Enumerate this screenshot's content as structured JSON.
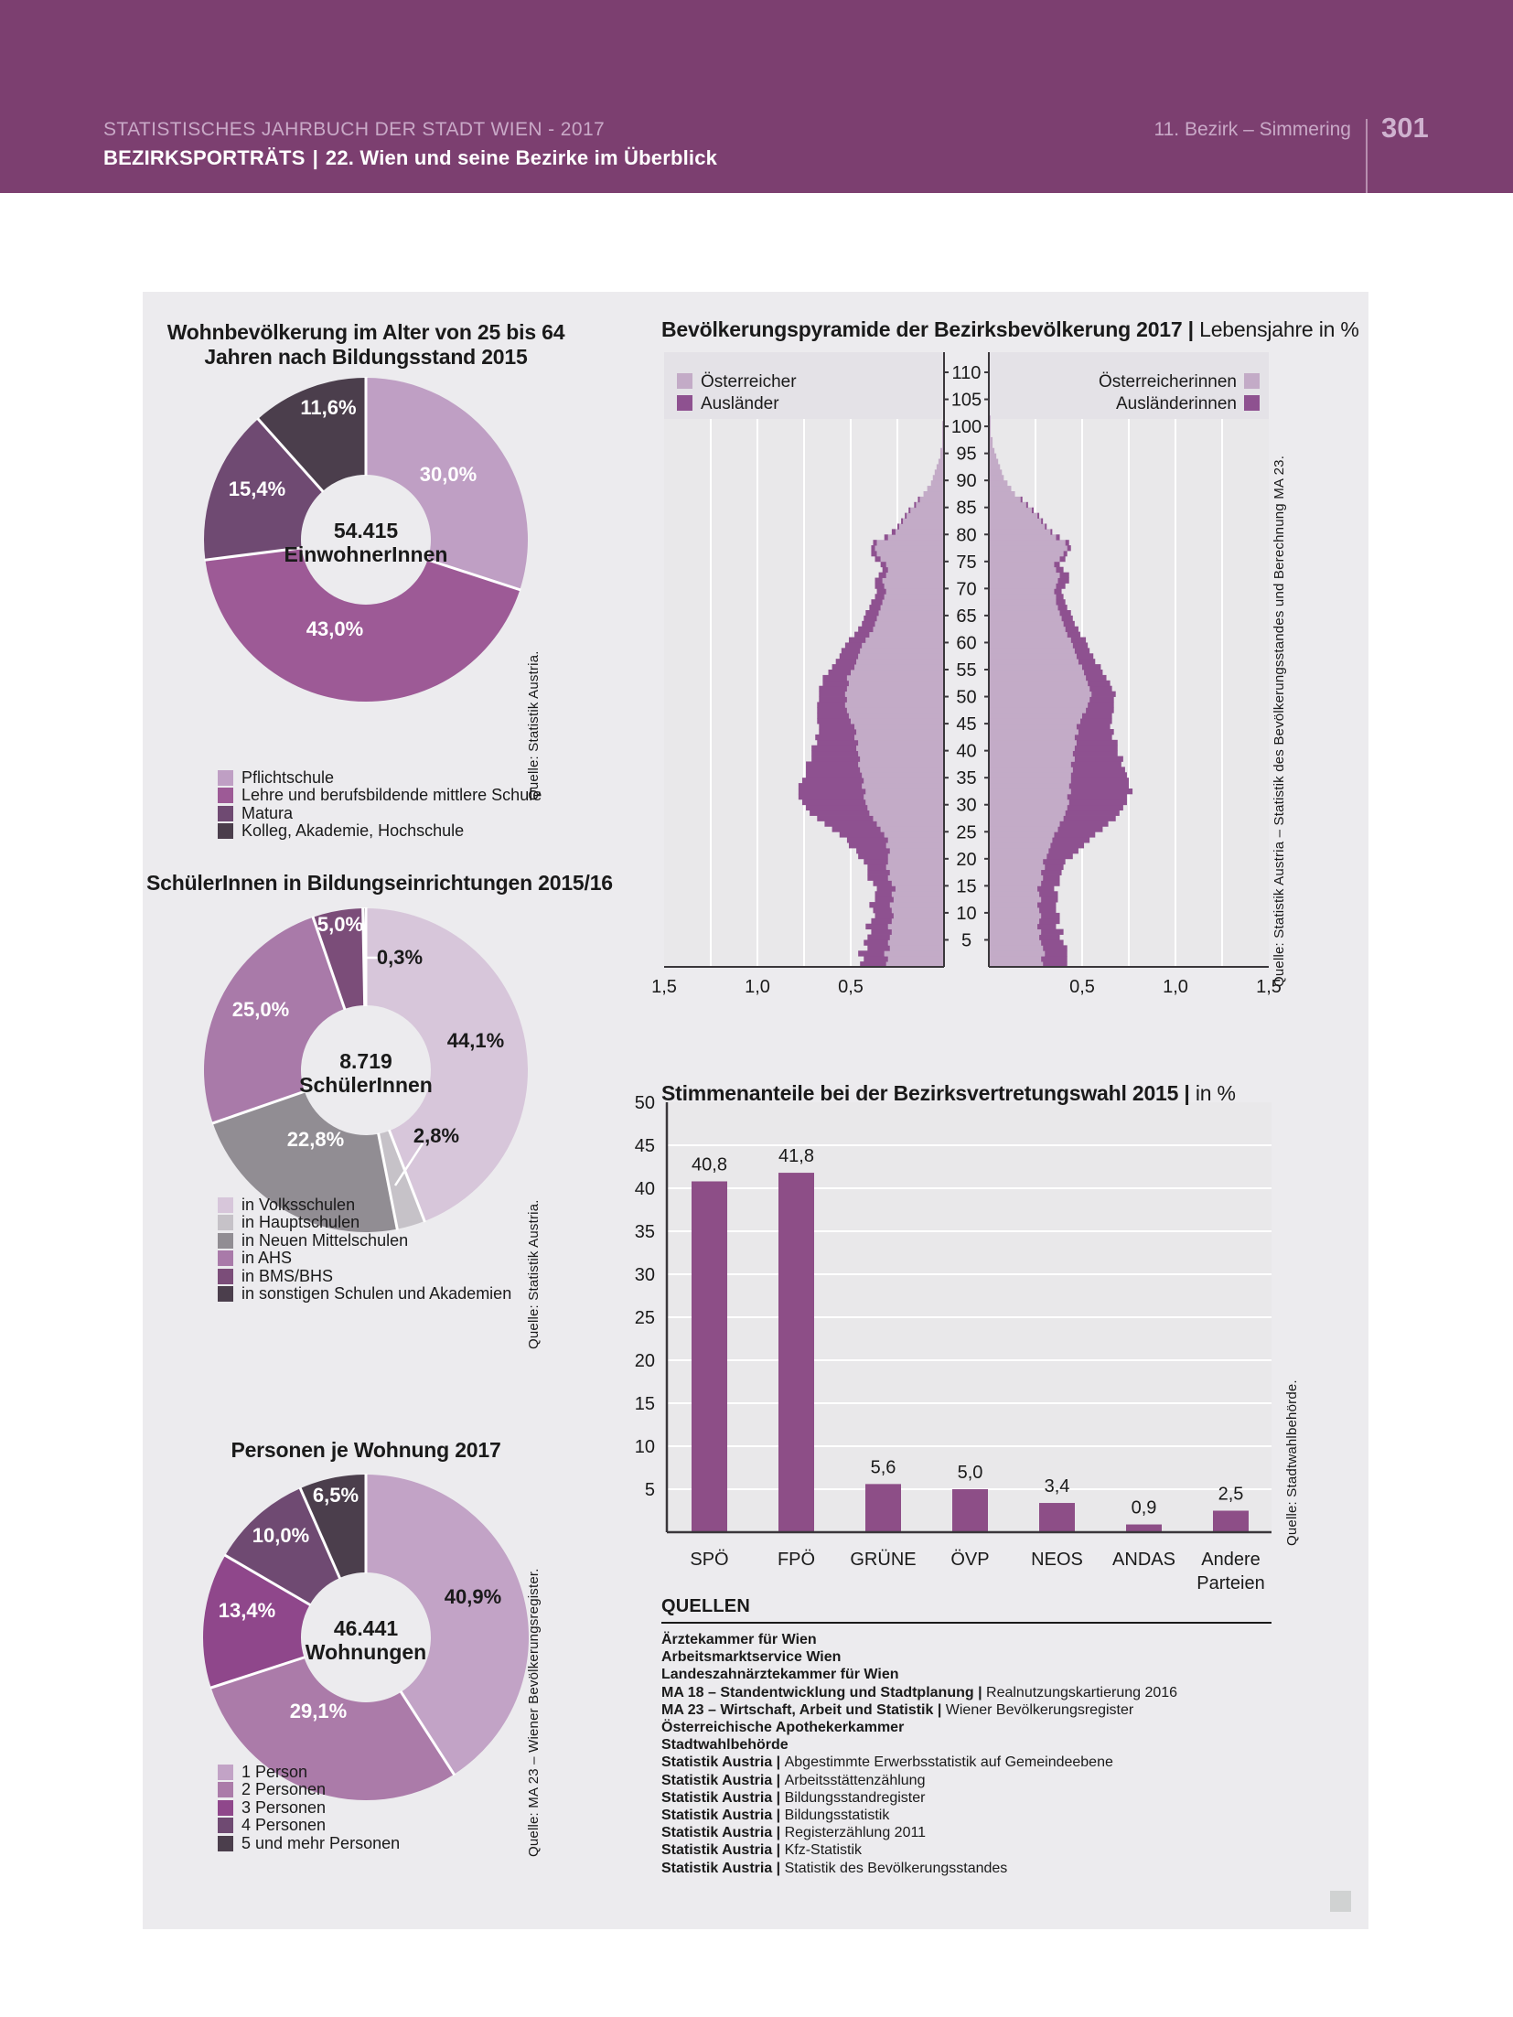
{
  "header": {
    "series_title": "STATISTISCHES JAHRBUCH DER STADT WIEN - 2017",
    "section": "BEZIRKSPORTRÄTS",
    "chapter": "22. Wien und seine Bezirke im Überblick",
    "district": "11. Bezirk – Simmering",
    "page_number": "301",
    "band_color": "#7c3f70"
  },
  "chart_data": [
    {
      "id": "education",
      "type": "pie",
      "title": "Wohnbevölkerung im Alter von 25 bis 64",
      "title2": "Jahren nach Bildungsstand 2015",
      "center_value": "54.415",
      "center_label": "EinwohnerInnen",
      "source": "Quelle: Statistik Austria.",
      "segments": [
        {
          "label": "Pflichtschule",
          "value": 30.0,
          "value_label": "30,0%",
          "color": "#bf9fc4",
          "text_color": "#ffffff"
        },
        {
          "label": "Lehre und berufsbildende mittlere Schule",
          "value": 43.0,
          "value_label": "43,0%",
          "color": "#9d5a96",
          "text_color": "#ffffff"
        },
        {
          "label": "Matura",
          "value": 15.4,
          "value_label": "15,4%",
          "color": "#6f4a72",
          "text_color": "#ffffff"
        },
        {
          "label": "Kolleg, Akademie, Hochschule",
          "value": 11.6,
          "value_label": "11,6%",
          "color": "#4b3e4c",
          "text_color": "#ffffff"
        }
      ]
    },
    {
      "id": "pyramid",
      "type": "pyramid",
      "title": "Bevölkerungspyramide der Bezirksbevölkerung 2017 |",
      "subtitle": "Lebensjahre in %",
      "source": "Quelle: Statistik Austria – Statistik des Bevölkerungsstandes und Berechnung MA 23.",
      "legend_left": [
        "Österreicher",
        "Ausländer"
      ],
      "legend_right": [
        "Österreicherinnen",
        "Ausländerinnen"
      ],
      "colors": {
        "national": "#c3abc7",
        "foreign": "#8e5190"
      },
      "age_axis": {
        "min": 5,
        "max": 110,
        "step": 5
      },
      "x_axis": {
        "max": 1.5,
        "tick_step": 0.5,
        "ticks_left": [
          "1,5",
          "1,0",
          "0,5"
        ],
        "ticks_right": [
          "0,5",
          "1,0",
          "1,5"
        ]
      },
      "male": {
        "austrians": [
          0.31,
          0.3,
          0.32,
          0.29,
          0.3,
          0.29,
          0.28,
          0.3,
          0.28,
          0.27,
          0.28,
          0.29,
          0.27,
          0.28,
          0.26,
          0.28,
          0.3,
          0.29,
          0.31,
          0.3,
          0.3,
          0.29,
          0.31,
          0.3,
          0.32,
          0.34,
          0.36,
          0.38,
          0.4,
          0.41,
          0.42,
          0.43,
          0.42,
          0.44,
          0.43,
          0.44,
          0.45,
          0.46,
          0.45,
          0.46,
          0.47,
          0.46,
          0.48,
          0.47,
          0.48,
          0.5,
          0.51,
          0.52,
          0.53,
          0.52,
          0.53,
          0.52,
          0.51,
          0.52,
          0.5,
          0.48,
          0.47,
          0.46,
          0.45,
          0.44,
          0.42,
          0.4,
          0.38,
          0.37,
          0.36,
          0.35,
          0.34,
          0.33,
          0.32,
          0.31,
          0.32,
          0.33,
          0.31,
          0.3,
          0.31,
          0.34,
          0.36,
          0.37,
          0.36,
          0.3,
          0.26,
          0.24,
          0.22,
          0.2,
          0.18,
          0.15,
          0.13,
          0.11,
          0.09,
          0.07,
          0.06,
          0.05,
          0.04,
          0.03,
          0.02,
          0.02,
          0.01,
          0.01,
          0.01,
          0.01,
          0.01,
          0,
          0,
          0,
          0,
          0
        ],
        "foreigners": [
          0.14,
          0.13,
          0.14,
          0.12,
          0.13,
          0.12,
          0.11,
          0.12,
          0.11,
          0.1,
          0.1,
          0.11,
          0.1,
          0.09,
          0.1,
          0.1,
          0.11,
          0.12,
          0.1,
          0.13,
          0.16,
          0.18,
          0.2,
          0.22,
          0.24,
          0.26,
          0.28,
          0.3,
          0.32,
          0.33,
          0.34,
          0.35,
          0.36,
          0.34,
          0.33,
          0.3,
          0.29,
          0.28,
          0.26,
          0.25,
          0.24,
          0.22,
          0.21,
          0.2,
          0.19,
          0.18,
          0.17,
          0.16,
          0.15,
          0.15,
          0.14,
          0.15,
          0.14,
          0.13,
          0.12,
          0.12,
          0.11,
          0.1,
          0.1,
          0.09,
          0.09,
          0.08,
          0.08,
          0.07,
          0.07,
          0.07,
          0.06,
          0.06,
          0.05,
          0.05,
          0.05,
          0.04,
          0.04,
          0.03,
          0.03,
          0.03,
          0.03,
          0.02,
          0.02,
          0.02,
          0.02,
          0.01,
          0.01,
          0.01,
          0.01,
          0.01,
          0.01,
          0,
          0,
          0,
          0,
          0,
          0,
          0,
          0,
          0,
          0,
          0,
          0,
          0,
          0,
          0,
          0,
          0,
          0,
          0
        ]
      },
      "female": {
        "austrians": [
          0.29,
          0.28,
          0.3,
          0.29,
          0.28,
          0.27,
          0.28,
          0.26,
          0.27,
          0.28,
          0.27,
          0.26,
          0.28,
          0.27,
          0.26,
          0.28,
          0.29,
          0.28,
          0.3,
          0.29,
          0.31,
          0.32,
          0.33,
          0.34,
          0.35,
          0.37,
          0.38,
          0.4,
          0.41,
          0.42,
          0.43,
          0.42,
          0.44,
          0.43,
          0.44,
          0.44,
          0.45,
          0.44,
          0.46,
          0.45,
          0.46,
          0.47,
          0.46,
          0.48,
          0.47,
          0.49,
          0.5,
          0.52,
          0.53,
          0.54,
          0.55,
          0.54,
          0.53,
          0.52,
          0.51,
          0.5,
          0.48,
          0.47,
          0.46,
          0.45,
          0.44,
          0.42,
          0.41,
          0.4,
          0.39,
          0.38,
          0.37,
          0.36,
          0.36,
          0.35,
          0.36,
          0.37,
          0.38,
          0.36,
          0.35,
          0.38,
          0.4,
          0.42,
          0.41,
          0.36,
          0.33,
          0.3,
          0.28,
          0.26,
          0.23,
          0.2,
          0.17,
          0.14,
          0.12,
          0.1,
          0.08,
          0.07,
          0.06,
          0.05,
          0.04,
          0.03,
          0.02,
          0.02,
          0.01,
          0.01,
          0.01,
          0.01,
          0,
          0,
          0,
          0
        ],
        "foreigners": [
          0.13,
          0.14,
          0.12,
          0.13,
          0.12,
          0.11,
          0.12,
          0.1,
          0.11,
          0.1,
          0.09,
          0.1,
          0.09,
          0.1,
          0.09,
          0.1,
          0.09,
          0.11,
          0.1,
          0.12,
          0.14,
          0.16,
          0.18,
          0.2,
          0.22,
          0.24,
          0.26,
          0.28,
          0.29,
          0.3,
          0.31,
          0.32,
          0.33,
          0.32,
          0.31,
          0.3,
          0.28,
          0.27,
          0.26,
          0.24,
          0.23,
          0.22,
          0.2,
          0.19,
          0.18,
          0.17,
          0.16,
          0.15,
          0.14,
          0.13,
          0.13,
          0.12,
          0.12,
          0.11,
          0.1,
          0.1,
          0.09,
          0.09,
          0.08,
          0.08,
          0.08,
          0.07,
          0.07,
          0.06,
          0.06,
          0.06,
          0.05,
          0.05,
          0.04,
          0.04,
          0.05,
          0.06,
          0.05,
          0.04,
          0.03,
          0.03,
          0.02,
          0.02,
          0.02,
          0.02,
          0.01,
          0.01,
          0.01,
          0.01,
          0.01,
          0.01,
          0.01,
          0,
          0,
          0,
          0,
          0,
          0,
          0,
          0,
          0,
          0,
          0,
          0,
          0,
          0,
          0,
          0,
          0,
          0,
          0
        ]
      }
    },
    {
      "id": "schools",
      "type": "pie",
      "title": "SchülerInnen in Bildungseinrichtungen 2015/16",
      "center_value": "8.719",
      "center_label": "SchülerInnen",
      "source": "Quelle: Statistik Austria.",
      "segments": [
        {
          "label": "in Volksschulen",
          "value": 44.1,
          "value_label": "44,1%",
          "color": "#d7c6da",
          "text_color": "#1a1a1a"
        },
        {
          "label": "in Hauptschulen",
          "value": 2.8,
          "value_label": "2,8%",
          "color": "#c6c2c8",
          "text_color": "#1a1a1a"
        },
        {
          "label": "in Neuen Mittelschulen",
          "value": 22.8,
          "value_label": "22,8%",
          "color": "#918d93",
          "text_color": "#ffffff"
        },
        {
          "label": "in AHS",
          "value": 25.0,
          "value_label": "25,0%",
          "color": "#a97aa9",
          "text_color": "#ffffff"
        },
        {
          "label": "in BMS/BHS",
          "value": 5.0,
          "value_label": "5,0%",
          "color": "#7b4d79",
          "text_color": "#ffffff"
        },
        {
          "label": "in sonstigen Schulen und Akademien",
          "value": 0.3,
          "value_label": "0,3%",
          "color": "#4b3e4c",
          "text_color": "#1a1a1a"
        }
      ]
    },
    {
      "id": "election",
      "type": "bar",
      "title": "Stimmenanteile bei der Bezirksvertretungswahl 2015 |",
      "subtitle": "in %",
      "source": "Quelle: Stadtwahlbehörde.",
      "categories": [
        "SPÖ",
        "FPÖ",
        "GRÜNE",
        "ÖVP",
        "NEOS",
        "ANDAS",
        "Andere Parteien"
      ],
      "category_lines": [
        [
          "SPÖ"
        ],
        [
          "FPÖ"
        ],
        [
          "GRÜNE"
        ],
        [
          "ÖVP"
        ],
        [
          "NEOS"
        ],
        [
          "ANDAS"
        ],
        [
          "Andere",
          "Parteien"
        ]
      ],
      "values": [
        40.8,
        41.8,
        5.6,
        5.0,
        3.4,
        0.9,
        2.5
      ],
      "value_labels": [
        "40,8",
        "41,8",
        "5,6",
        "5,0",
        "3,4",
        "0,9",
        "2,5"
      ],
      "ylim": [
        0,
        50
      ],
      "ytick_step": 5,
      "bar_color": "#8d4e87",
      "grid": true
    },
    {
      "id": "household",
      "type": "pie",
      "title": "Personen je Wohnung 2017",
      "center_value": "46.441",
      "center_label": "Wohnungen",
      "source": "Quelle: MA 23 – Wiener Bevölkerungsregister.",
      "segments": [
        {
          "label": "1 Person",
          "value": 40.9,
          "value_label": "40,9%",
          "color": "#c2a3c6",
          "text_color": "#1a1a1a"
        },
        {
          "label": "2 Personen",
          "value": 29.1,
          "value_label": "29,1%",
          "color": "#ab7ba9",
          "text_color": "#ffffff"
        },
        {
          "label": "3 Personen",
          "value": 13.4,
          "value_label": "13,4%",
          "color": "#8f478b",
          "text_color": "#ffffff"
        },
        {
          "label": "4 Personen",
          "value": 10.0,
          "value_label": "10,0%",
          "color": "#6f4a72",
          "text_color": "#ffffff"
        },
        {
          "label": "5 und mehr Personen",
          "value": 6.5,
          "value_label": "6,5%",
          "color": "#4b3e4c",
          "text_color": "#ffffff"
        }
      ]
    }
  ],
  "quellen": {
    "heading": "QUELLEN",
    "entries": [
      {
        "b": "Ärztekammer für Wien",
        "r": ""
      },
      {
        "b": "Arbeitsmarktservice Wien",
        "r": ""
      },
      {
        "b": "Landeszahnärztekammer für Wien",
        "r": ""
      },
      {
        "b": "MA 18 – Standentwicklung und Stadtplanung",
        "r": "Realnutzungskartierung 2016"
      },
      {
        "b": "MA 23 – Wirtschaft, Arbeit und Statistik",
        "r": "Wiener Bevölkerungsregister"
      },
      {
        "b": "Österreichische Apothekerkammer",
        "r": ""
      },
      {
        "b": "Stadtwahlbehörde",
        "r": ""
      },
      {
        "b": "Statistik Austria",
        "r": "Abgestimmte Erwerbsstatistik auf Gemeindeebene"
      },
      {
        "b": "Statistik Austria",
        "r": "Arbeitsstättenzählung"
      },
      {
        "b": "Statistik Austria",
        "r": "Bildungsstandregister"
      },
      {
        "b": "Statistik Austria",
        "r": "Bildungsstatistik"
      },
      {
        "b": "Statistik Austria",
        "r": "Registerzählung 2011"
      },
      {
        "b": "Statistik Austria",
        "r": "Kfz-Statistik"
      },
      {
        "b": "Statistik Austria",
        "r": "Statistik des Bevölkerungsstandes"
      }
    ]
  },
  "colors": {
    "panel_bg": "#ecebee",
    "plot_bg": "#e9e8ea",
    "legend_band_bg": "#e4e2e7",
    "axis": "#3a373b",
    "text": "#1a1a1a"
  }
}
